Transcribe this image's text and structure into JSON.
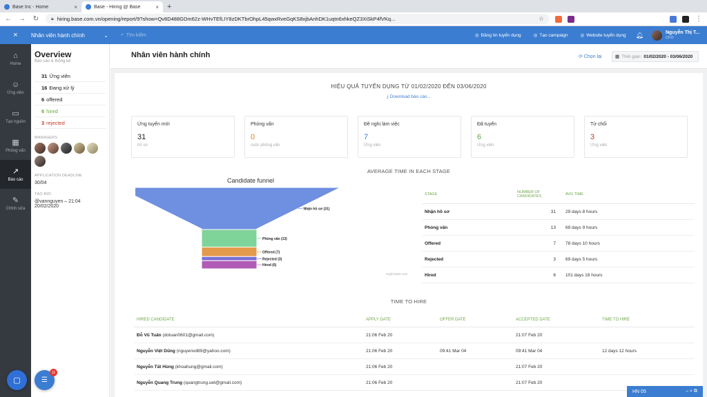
{
  "browser": {
    "tabs": [
      {
        "title": "Base Inc - Home",
        "active": false
      },
      {
        "title": "Base - Hiring @ Base",
        "active": true
      }
    ],
    "url": "hiring.base.com.vn/opening/report/9?show=Qv8D488GDm62z-WHvTEfLIY8zDKTbrOhpL45qwxRveGqKS8xjbAnhDK1uqtn6xhkeQZ3XiSkP4fVKq...",
    "new_tab": "+"
  },
  "header": {
    "close": "×",
    "opening_selector": "Nhân viên hành chính",
    "search_placeholder": "Tìm kiếm",
    "links": [
      "Đăng tin tuyển dụng",
      "Tạo campaign",
      "Website tuyển dụng"
    ],
    "user_name": "Nguyễn Thị T...",
    "user_role": "CFO"
  },
  "rail": [
    {
      "label": "Home",
      "icon": "home-icon",
      "glyph": "⌂"
    },
    {
      "label": "Ứng viên",
      "icon": "users-icon",
      "glyph": "☺"
    },
    {
      "label": "Tạo nguồn",
      "icon": "folder-icon",
      "glyph": "▭"
    },
    {
      "label": "Phỏng vấn",
      "icon": "calendar-icon",
      "glyph": "▦"
    },
    {
      "label": "Báo cáo",
      "icon": "chart-icon",
      "glyph": "↗",
      "active": true
    },
    {
      "label": "Chỉnh sửa",
      "icon": "edit-icon",
      "glyph": "✎"
    }
  ],
  "sidebar": {
    "title": "Overview",
    "subtitle": "Báo cáo & thống kê",
    "stats": [
      {
        "count": "31",
        "label": "Ứng viên",
        "color": "#222222"
      },
      {
        "count": "16",
        "label": "Đang xử lý",
        "color": "#222222"
      },
      {
        "count": "6",
        "label": "offered",
        "color": "#222222"
      },
      {
        "count": "6",
        "label": "hired",
        "color": "#6ca745"
      },
      {
        "count": "3",
        "label": "rejected",
        "color": "#c0392b"
      }
    ],
    "managers_label": "MANAGERS",
    "deadline_label": "APPLICATION DEADLINE",
    "deadline": "30/04",
    "created_label": "TẠO BỞI",
    "created_by": "@vannguyen – 21:04 20/02/2020"
  },
  "main": {
    "page_title": "Nhân viên hành chính",
    "choose": "Chọn lại",
    "date_label": "Thời gian:",
    "date_value": "01/02/2020 - 03/06/2020",
    "report_title": "HIỆU QUẢ TUYỂN DỤNG TỪ 01/02/2020 ĐẾN 03/06/2020",
    "download": "Download báo cáo...",
    "stat_boxes": [
      {
        "label": "Ứng tuyển mới",
        "value": "31",
        "unit": "hồ sơ",
        "color": "#222222"
      },
      {
        "label": "Phỏng vấn",
        "value": "0",
        "unit": "cuộc phỏng vấn",
        "color": "#e67e22"
      },
      {
        "label": "Đề nghị làm việc",
        "value": "7",
        "unit": "Ứng viên",
        "color": "#3b7dd0"
      },
      {
        "label": "Đã tuyển",
        "value": "6",
        "unit": "Ứng viên",
        "color": "#6ca745"
      },
      {
        "label": "Từ chối",
        "value": "3",
        "unit": "Ứng viên",
        "color": "#c0392b"
      }
    ],
    "avg_title": "AVERAGE TIME IN EACH STAGE",
    "stage_headers": [
      "STAGE",
      "NUMBER OF CANDIDATES",
      "AVG TIME"
    ],
    "stages": [
      {
        "stage": "Nhận hồ sơ",
        "count": "31",
        "avg": "29 days 8 hours"
      },
      {
        "stage": "Phỏng vấn",
        "count": "13",
        "avg": "69 days 9 hours"
      },
      {
        "stage": "Offered",
        "count": "7",
        "avg": "78 days 10 hours"
      },
      {
        "stage": "Rejected",
        "count": "3",
        "avg": "69 days 5 hours"
      },
      {
        "stage": "Hired",
        "count": "6",
        "avg": "101 days 18 hours"
      }
    ],
    "time_title": "TIME TO HIRE",
    "hire_headers": [
      "HIRED CANDIDATE",
      "APPLY DATE",
      "OFFER DATE",
      "ACCEPTED DATE",
      "TIME TO HIRE"
    ],
    "hires": [
      {
        "name": "Đỗ Vũ Tuấn",
        "email": "(dotuan0601@gmail.com)",
        "apply": "21:06 Feb 20",
        "offer": "",
        "accepted": "21:07 Feb 20",
        "time": ""
      },
      {
        "name": "Nguyễn Việt Dũng",
        "email": "(nguyenvd89@yahoo.com)",
        "apply": "21:06 Feb 20",
        "offer": "09:41 Mar 04",
        "accepted": "09:41 Mar 04",
        "time": "12 days 12 hours"
      },
      {
        "name": "Nguyễn Tất Hùng",
        "email": "(khoahung@gmail.com)",
        "apply": "21:06 Feb 20",
        "offer": "",
        "accepted": "21:07 Feb 20",
        "time": ""
      },
      {
        "name": "Nguyễn Quang Trung",
        "email": "(quangtrung.uet@gmail.com)",
        "apply": "21:06 Feb 20",
        "offer": "",
        "accepted": "21:07 Feb 20",
        "time": ""
      }
    ],
    "credits": "Highcharts.com"
  },
  "chart_data": {
    "type": "funnel",
    "title": "Candidate funnel",
    "categories": [
      "Nhận hồ sơ",
      "Phỏng vấn",
      "Offered",
      "Rejected",
      "Hired"
    ],
    "values": [
      31,
      13,
      7,
      3,
      6
    ],
    "labels": [
      "Nhận hồ sơ (31)",
      "Phỏng vấn (13)",
      "Offered (7)",
      "Rejected (3)",
      "Hired (6)"
    ],
    "colors": [
      "#6f8fe0",
      "#7fd49a",
      "#e39a4b",
      "#7a6fd6",
      "#b05bb5"
    ]
  },
  "widgets": {
    "task_badge": "11",
    "hn_bar": "HN 05"
  }
}
